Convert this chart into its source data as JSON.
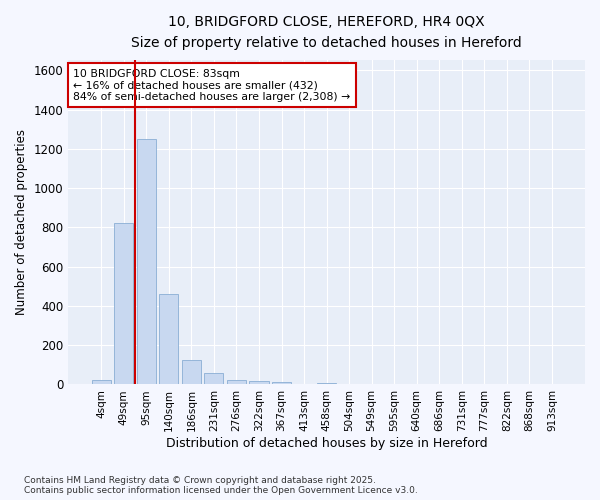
{
  "title": "10, BRIDGFORD CLOSE, HEREFORD, HR4 0QX",
  "subtitle": "Size of property relative to detached houses in Hereford",
  "xlabel": "Distribution of detached houses by size in Hereford",
  "ylabel": "Number of detached properties",
  "bar_color": "#c8d8f0",
  "bar_edge_color": "#8aaed4",
  "background_color": "#e8eef8",
  "grid_color": "#ffffff",
  "fig_bg_color": "#f5f7ff",
  "categories": [
    "4sqm",
    "49sqm",
    "95sqm",
    "140sqm",
    "186sqm",
    "231sqm",
    "276sqm",
    "322sqm",
    "367sqm",
    "413sqm",
    "458sqm",
    "504sqm",
    "549sqm",
    "595sqm",
    "640sqm",
    "686sqm",
    "731sqm",
    "777sqm",
    "822sqm",
    "868sqm",
    "913sqm"
  ],
  "values": [
    22,
    820,
    1248,
    462,
    125,
    58,
    25,
    18,
    15,
    0,
    8,
    0,
    0,
    0,
    0,
    0,
    0,
    0,
    0,
    0,
    0
  ],
  "ylim": [
    0,
    1650
  ],
  "yticks": [
    0,
    200,
    400,
    600,
    800,
    1000,
    1200,
    1400,
    1600
  ],
  "vline_x_idx": 2,
  "vline_color": "#cc0000",
  "annotation_text": "10 BRIDGFORD CLOSE: 83sqm\n← 16% of detached houses are smaller (432)\n84% of semi-detached houses are larger (2,308) →",
  "annotation_box_color": "#ffffff",
  "annotation_box_edge": "#cc0000",
  "footer_line1": "Contains HM Land Registry data © Crown copyright and database right 2025.",
  "footer_line2": "Contains public sector information licensed under the Open Government Licence v3.0."
}
